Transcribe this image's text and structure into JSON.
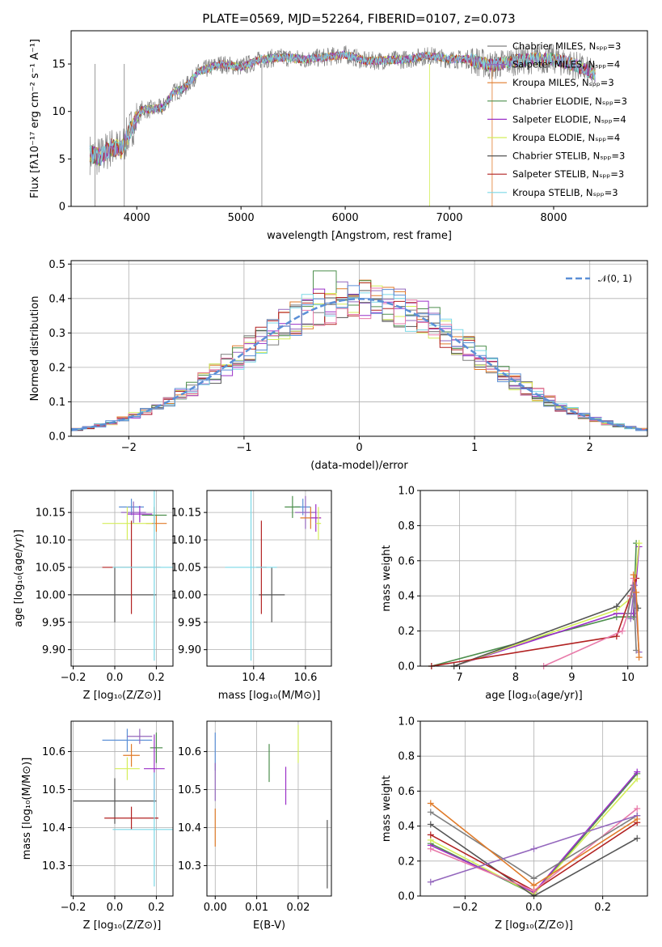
{
  "chart_data": [
    {
      "type": "line",
      "panel": "spectrum",
      "title": "PLATE=0569, MJD=52264, FIBERID=0107, z=0.073",
      "xlabel": "wavelength [Angstrom, rest frame]",
      "ylabel": "Flux [fλ10⁻¹⁷ erg cm⁻² s⁻¹ A⁻¹]",
      "xlim": [
        3370,
        8900
      ],
      "ylim": [
        0,
        18.5
      ],
      "xticks": [
        4000,
        5000,
        6000,
        7000,
        8000
      ],
      "yticks": [
        0,
        5,
        10,
        15
      ],
      "grid": false,
      "legend_position": "right",
      "series_key": [
        "Chabrier MILES, Nₛₚₚ=3",
        "Salpeter MILES, Nₛₚₚ=4",
        "Kroupa MILES, Nₛₚₚ=3",
        "Chabrier ELODIE, Nₛₚₚ=3",
        "Salpeter ELODIE, Nₛₚₚ=4",
        "Kroupa ELODIE, Nₛₚₚ=4",
        "Chabrier STELIB, Nₛₚₚ=3",
        "Salpeter STELIB, Nₛₚₚ=3",
        "Kroupa STELIB, Nₛₚₚ=3"
      ],
      "continuum": {
        "x": [
          3550,
          3650,
          3750,
          3850,
          3950,
          4050,
          4150,
          4250,
          4350,
          4450,
          4600,
          4800,
          5000,
          5200,
          5400,
          5600,
          5800,
          6000,
          6200,
          6400,
          6600,
          6800,
          7000,
          7200,
          7400,
          7600,
          7800,
          8000,
          8200,
          8400
        ],
        "y": [
          5.5,
          5.2,
          6.2,
          6.0,
          8.3,
          10.2,
          10.2,
          10.4,
          12.0,
          12.4,
          14.2,
          15.0,
          14.7,
          15.5,
          15.7,
          15.5,
          15.7,
          16.0,
          15.3,
          15.4,
          15.5,
          15.9,
          15.5,
          15.5,
          14.8,
          15.3,
          15.5,
          15.5,
          14.9,
          13.8
        ]
      }
    },
    {
      "type": "line",
      "panel": "residuals",
      "xlabel": "(data-model)/error",
      "ylabel": "Normed distribution",
      "xlim": [
        -2.5,
        2.5
      ],
      "ylim": [
        0,
        0.51
      ],
      "xticks": [
        -2,
        -1,
        0,
        1,
        2
      ],
      "yticks": [
        0.0,
        0.1,
        0.2,
        0.3,
        0.4,
        0.5
      ],
      "grid": true,
      "legend": "𝒩(0, 1)",
      "legend_position": "top-right",
      "model": {
        "name": "𝒩(0, 1)",
        "mean": 0,
        "sigma": 1
      },
      "histogram_sketch": {
        "x": [
          -2.5,
          -2.0,
          -1.5,
          -1.0,
          -0.5,
          -0.3,
          0.0,
          0.3,
          0.5,
          1.0,
          1.5,
          2.0,
          2.5
        ],
        "y": [
          0.03,
          0.06,
          0.13,
          0.23,
          0.35,
          0.42,
          0.38,
          0.4,
          0.35,
          0.25,
          0.13,
          0.05,
          0.03
        ]
      }
    },
    {
      "type": "scatter",
      "panel": "age-vs-Z",
      "xlabel": "Z [log₁₀(Z/Z⊙)]",
      "ylabel": "age  [log₁₀(age/yr)]",
      "xlim": [
        -0.21,
        0.28
      ],
      "ylim": [
        9.87,
        10.19
      ],
      "xticks": [
        -0.2,
        0.0,
        0.2
      ],
      "yticks": [
        9.9,
        9.95,
        10.0,
        10.05,
        10.1,
        10.15
      ],
      "grid": true,
      "points": [
        {
          "x": 0.08,
          "y": 10.16,
          "xerr": 0.06,
          "yerr": 0.015
        },
        {
          "x": 0.09,
          "y": 10.15,
          "xerr": 0.06,
          "yerr": 0.02
        },
        {
          "x": 0.2,
          "y": 10.13,
          "xerr": 0.05,
          "yerr": 0.015
        },
        {
          "x": 0.19,
          "y": 10.145,
          "xerr": 0.06,
          "yerr": 0.015
        },
        {
          "x": 0.12,
          "y": 10.147,
          "xerr": 0.06,
          "yerr": 0.015
        },
        {
          "x": 0.06,
          "y": 10.13,
          "xerr": 0.12,
          "yerr": 0.03
        },
        {
          "x": 0.0,
          "y": 10.0,
          "xerr": 0.2,
          "yerr": 0.05
        },
        {
          "x": 0.08,
          "y": 10.05,
          "xerr": 0.14,
          "yerr": 0.085
        },
        {
          "x": 0.19,
          "y": 10.05,
          "xerr": 0.2,
          "yerr": 0.17
        }
      ]
    },
    {
      "type": "scatter",
      "panel": "age-vs-mass",
      "xlabel": "mass [log₁₀(M/M⊙)]",
      "ylim": [
        9.87,
        10.19
      ],
      "xlim": [
        10.22,
        10.7
      ],
      "xticks": [
        10.4,
        10.6
      ],
      "yticks": [
        9.9,
        9.95,
        10.0,
        10.05,
        10.1,
        10.15
      ],
      "grid": true,
      "points": [
        {
          "x": 10.59,
          "y": 10.16,
          "xerr": 0.03,
          "yerr": 0.015
        },
        {
          "x": 10.6,
          "y": 10.15,
          "xerr": 0.04,
          "yerr": 0.03
        },
        {
          "x": 10.62,
          "y": 10.14,
          "xerr": 0.04,
          "yerr": 0.02
        },
        {
          "x": 10.55,
          "y": 10.16,
          "xerr": 0.03,
          "yerr": 0.02
        },
        {
          "x": 10.64,
          "y": 10.14,
          "xerr": 0.02,
          "yerr": 0.025
        },
        {
          "x": 10.65,
          "y": 10.13,
          "xerr": 0.01,
          "yerr": 0.03
        },
        {
          "x": 10.47,
          "y": 10.0,
          "xerr": 0.05,
          "yerr": 0.05
        },
        {
          "x": 10.43,
          "y": 10.05,
          "xerr": 0.02,
          "yerr": 0.085
        },
        {
          "x": 10.39,
          "y": 10.05,
          "xerr": 0.1,
          "yerr": 0.17
        }
      ]
    },
    {
      "type": "line",
      "panel": "weight-vs-age",
      "xlabel": "age  [log₁₀(age/yr)]",
      "ylabel": "mass weight",
      "xlim": [
        6.3,
        10.35
      ],
      "ylim": [
        0,
        1
      ],
      "xticks": [
        7,
        8,
        9,
        10
      ],
      "yticks": [
        0.0,
        0.2,
        0.4,
        0.6,
        0.8,
        1.0
      ],
      "grid": true,
      "series": [
        {
          "x": [
            6.5,
            9.8,
            10.1,
            10.15
          ],
          "y": [
            0.0,
            0.28,
            0.28,
            0.7
          ]
        },
        {
          "x": [
            6.9,
            9.8,
            10.1,
            10.2
          ],
          "y": [
            0.0,
            0.3,
            0.3,
            0.68
          ]
        },
        {
          "x": [
            6.9,
            9.8,
            10.1,
            10.2
          ],
          "y": [
            0.0,
            0.32,
            0.4,
            0.7
          ]
        },
        {
          "x": [
            6.9,
            9.8,
            10.1,
            10.18
          ],
          "y": [
            0.0,
            0.34,
            0.46,
            0.33
          ]
        },
        {
          "x": [
            6.5,
            9.8,
            10.05,
            10.15
          ],
          "y": [
            0.0,
            0.17,
            0.4,
            0.5
          ]
        },
        {
          "x": [
            8.5,
            9.9,
            10.0,
            10.1
          ],
          "y": [
            0.0,
            0.2,
            0.3,
            0.5
          ]
        },
        {
          "x": [
            10.0,
            10.1,
            10.15
          ],
          "y": [
            0.3,
            0.46,
            0.09
          ]
        },
        {
          "x": [
            10.05,
            10.12,
            10.2
          ],
          "y": [
            0.27,
            0.46,
            0.08
          ]
        },
        {
          "x": [
            10.1,
            10.15,
            10.2
          ],
          "y": [
            0.52,
            0.42,
            0.05
          ]
        }
      ]
    },
    {
      "type": "scatter",
      "panel": "mass-vs-Z",
      "xlabel": "Z [log₁₀(Z/Z⊙)]",
      "ylabel": "mass [log₁₀(M/M⊙)]",
      "xlim": [
        -0.21,
        0.28
      ],
      "ylim": [
        10.22,
        10.68
      ],
      "xticks": [
        -0.2,
        0.0,
        0.2
      ],
      "yticks": [
        10.3,
        10.4,
        10.5,
        10.6
      ],
      "grid": true,
      "points": [
        {
          "x": 0.06,
          "y": 10.63,
          "xerr": 0.12,
          "yerr": 0.03
        },
        {
          "x": 0.12,
          "y": 10.64,
          "xerr": 0.06,
          "yerr": 0.02
        },
        {
          "x": 0.08,
          "y": 10.59,
          "xerr": 0.04,
          "yerr": 0.03
        },
        {
          "x": 0.2,
          "y": 10.61,
          "xerr": 0.03,
          "yerr": 0.04
        },
        {
          "x": 0.19,
          "y": 10.555,
          "xerr": 0.05,
          "yerr": 0.09
        },
        {
          "x": 0.06,
          "y": 10.555,
          "xerr": 0.06,
          "yerr": 0.03
        },
        {
          "x": 0.0,
          "y": 10.47,
          "xerr": 0.2,
          "yerr": 0.06
        },
        {
          "x": 0.08,
          "y": 10.425,
          "xerr": 0.13,
          "yerr": 0.03
        },
        {
          "x": 0.19,
          "y": 10.395,
          "xerr": 0.2,
          "yerr": 0.15
        }
      ]
    },
    {
      "type": "scatter",
      "panel": "mass-vs-EBV",
      "xlabel": "E(B-V)",
      "xlim": [
        -0.002,
        0.028
      ],
      "ylim": [
        10.22,
        10.68
      ],
      "xticks": [
        0.0,
        0.01,
        0.02
      ],
      "yticks": [
        10.3,
        10.4,
        10.5,
        10.6
      ],
      "grid": true,
      "points": [
        {
          "x": 0.0,
          "y": 10.6,
          "yerr": 0.05
        },
        {
          "x": 0.0,
          "y": 10.52,
          "yerr": 0.05
        },
        {
          "x": 0.0,
          "y": 10.4,
          "yerr": 0.05
        },
        {
          "x": 0.013,
          "y": 10.57,
          "yerr": 0.05
        },
        {
          "x": 0.017,
          "y": 10.51,
          "yerr": 0.05
        },
        {
          "x": 0.02,
          "y": 10.62,
          "yerr": 0.05
        },
        {
          "x": 0.027,
          "y": 10.33,
          "yerr": 0.09
        }
      ]
    },
    {
      "type": "line",
      "panel": "weight-vs-Z",
      "xlabel": "Z [log₁₀(Z/Z⊙)]",
      "ylabel": "mass weight",
      "xlim": [
        -0.33,
        0.33
      ],
      "ylim": [
        0,
        1
      ],
      "xticks": [
        -0.2,
        0.0,
        0.2
      ],
      "yticks": [
        0.0,
        0.2,
        0.4,
        0.6,
        0.8,
        1.0
      ],
      "grid": true,
      "series": [
        {
          "x": [
            -0.3,
            0.0,
            0.3
          ],
          "y": [
            0.3,
            0.01,
            0.7
          ]
        },
        {
          "x": [
            -0.3,
            0.0,
            0.3
          ],
          "y": [
            0.29,
            0.02,
            0.71
          ]
        },
        {
          "x": [
            -0.3,
            0.0,
            0.3
          ],
          "y": [
            0.32,
            0.01,
            0.67
          ]
        },
        {
          "x": [
            -0.3,
            0.0,
            0.3
          ],
          "y": [
            0.41,
            0.0,
            0.33
          ]
        },
        {
          "x": [
            -0.3,
            0.0,
            0.3
          ],
          "y": [
            0.35,
            0.03,
            0.42
          ]
        },
        {
          "x": [
            -0.3,
            0.0,
            0.3
          ],
          "y": [
            0.27,
            0.03,
            0.5
          ]
        },
        {
          "x": [
            -0.3,
            0.0,
            0.3
          ],
          "y": [
            0.48,
            0.1,
            0.46
          ]
        },
        {
          "x": [
            -0.3,
            0.0,
            0.3
          ],
          "y": [
            0.08,
            0.27,
            0.46
          ]
        },
        {
          "x": [
            -0.3,
            0.0,
            0.3
          ],
          "y": [
            0.53,
            0.06,
            0.44
          ]
        }
      ]
    }
  ],
  "colors": {
    "series": [
      "#7f7f7f",
      "#9467bd",
      "#e07b2a",
      "#4d8f4d",
      "#9b30c8",
      "#d4ee5a",
      "#555555",
      "#b22222",
      "#7bd8e6"
    ],
    "normal_curve": "#5b8fd6",
    "pink": "#e87aa9",
    "blue": "#5b8fd6"
  }
}
